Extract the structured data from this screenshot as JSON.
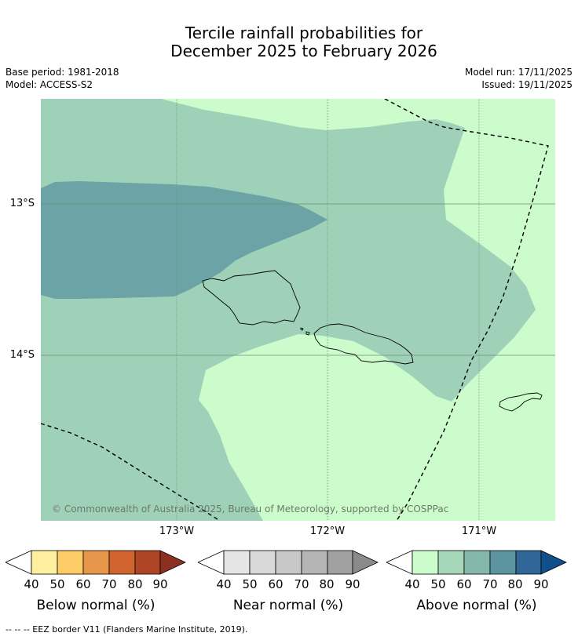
{
  "title": {
    "line1": "Tercile rainfall probabilities for",
    "line2": "December 2025 to February 2026"
  },
  "meta": {
    "base_period": "Base period: 1981-2018",
    "model": "Model: ACCESS-S2",
    "model_run": "Model run: 17/11/2025",
    "issued": "Issued: 19/11/2025"
  },
  "map": {
    "lat_labels": [
      "13°S",
      "14°S"
    ],
    "lon_labels": [
      "173°W",
      "172°W",
      "171°W"
    ],
    "copyright": "© Commonwealth of Australia 2025, Bureau of Meteorology, supported by COSPPac",
    "region_colors": {
      "above_40_50": "#ccfccc",
      "above_50_60": "#9fd1b9",
      "above_60_70": "#6ba3a6"
    }
  },
  "legends": [
    {
      "title": "Below normal (%)",
      "ticks": [
        "40",
        "50",
        "60",
        "70",
        "80",
        "90"
      ],
      "colors": [
        "#fff0a0",
        "#fdcc67",
        "#e5964a",
        "#d1632e",
        "#ae4524",
        "#8c3122"
      ]
    },
    {
      "title": "Near normal (%)",
      "ticks": [
        "40",
        "50",
        "60",
        "70",
        "80",
        "90"
      ],
      "colors": [
        "#e5e5e5",
        "#d8d8d8",
        "#c8c8c8",
        "#b5b5b5",
        "#a1a1a1",
        "#8a8a8a"
      ]
    },
    {
      "title": "Above normal (%)",
      "ticks": [
        "40",
        "50",
        "60",
        "70",
        "80",
        "90"
      ],
      "colors": [
        "#ccfccc",
        "#a5d7b8",
        "#84b8ab",
        "#5c949f",
        "#306798",
        "#104f8a"
      ]
    }
  ],
  "footnote": "--  --  -- EEZ border V11 (Flanders Marine Institute, 2019)."
}
